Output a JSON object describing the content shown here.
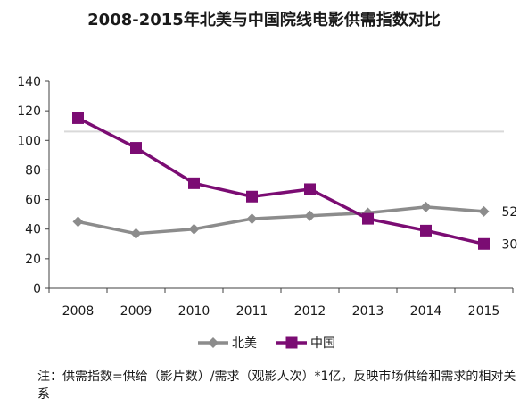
{
  "chart_data": {
    "type": "line",
    "title": "2008-2015年北美与中国院线电影供需指数对比",
    "categories": [
      "2008",
      "2009",
      "2010",
      "2011",
      "2012",
      "2013",
      "2014",
      "2015"
    ],
    "series": [
      {
        "name": "北美",
        "values": [
          45,
          37,
          40,
          47,
          49,
          51,
          55,
          52
        ],
        "color": "#8c8c8c",
        "marker": "diamond",
        "end_label": "52"
      },
      {
        "name": "中国",
        "values": [
          115,
          95,
          71,
          62,
          67,
          47,
          39,
          30
        ],
        "color": "#7b0c73",
        "marker": "square",
        "end_label": "30"
      }
    ],
    "yticks": [
      "0",
      "20",
      "40",
      "60",
      "80",
      "100",
      "120",
      "140"
    ],
    "ylim": [
      0,
      140
    ],
    "grid": false,
    "reference_line": {
      "value": 106,
      "color": "#d9d9d9"
    },
    "legend": "bottom",
    "note": "注：供需指数=供给（影片数）/需求（观影人次）*1亿，反映市场供给和需求的相对关系"
  }
}
